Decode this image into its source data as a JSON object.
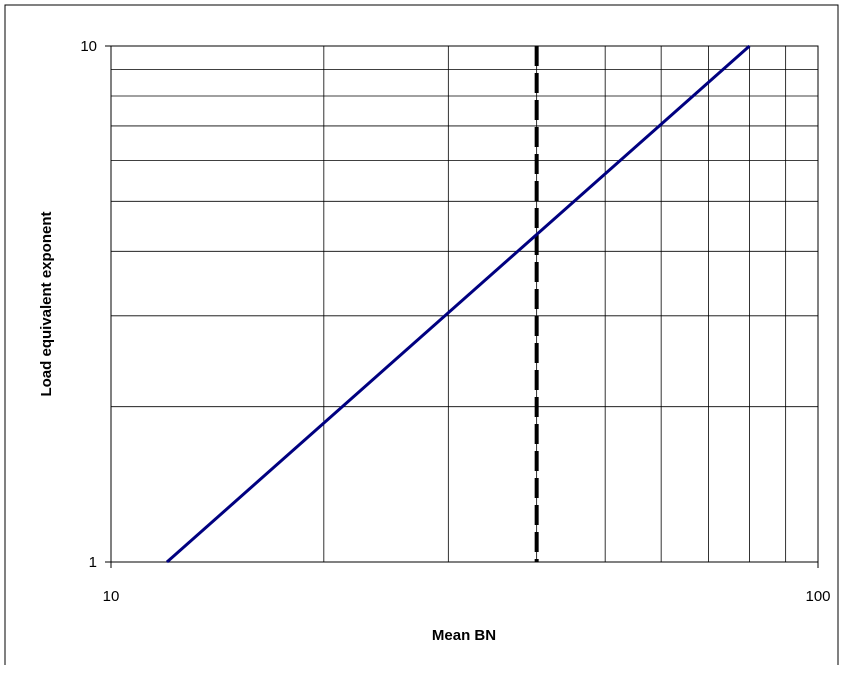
{
  "chart_data": {
    "type": "line",
    "title": "",
    "xlabel": "Mean BN",
    "ylabel": "Load equivalent exponent",
    "x_scale": "log",
    "y_scale": "log",
    "xlim": [
      10,
      100
    ],
    "ylim": [
      1,
      10
    ],
    "x_ticks": [
      "10",
      "100"
    ],
    "y_ticks": [
      "1",
      "10"
    ],
    "grid": true,
    "legend": "none",
    "series": [
      {
        "x": [
          12,
          80
        ],
        "y": [
          1,
          10
        ],
        "color": "#000080",
        "style": "solid"
      }
    ],
    "reference_lines": [
      {
        "axis": "x",
        "value": 40,
        "color": "#000000",
        "style": "dashed"
      }
    ]
  }
}
